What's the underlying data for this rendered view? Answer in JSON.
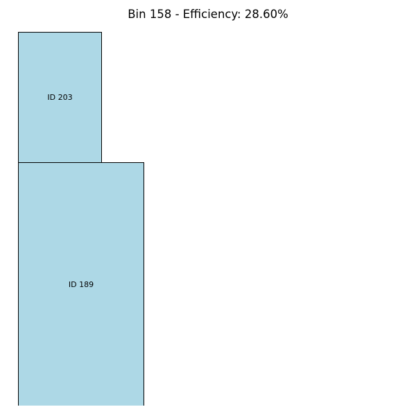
{
  "title": "Bin 158 - Efficiency: 28.60%",
  "colors": {
    "item_fill": "#add8e6",
    "item_edge": "#000000",
    "background": "#ffffff"
  },
  "items": [
    {
      "label": "ID 203"
    },
    {
      "label": "ID 189"
    }
  ]
}
